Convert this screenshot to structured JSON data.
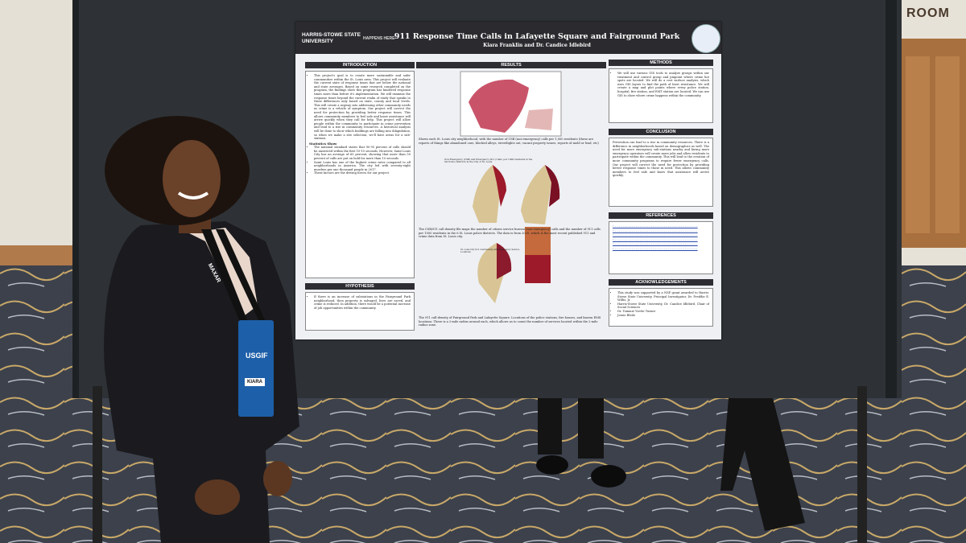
{
  "sign": "ROOM",
  "poster": {
    "logo": "HARRIS-STOWE STATE UNIVERSITY",
    "tagline": "HAPPENS HERE",
    "title": "911 Response Time Calls in Lafayette Square and Fairground Park",
    "authors": "Kiara Franklin and Dr. Candice Idlebird",
    "introduction": {
      "heading": "INTRODUCTION",
      "body": "This project's goal is to create more sustainable and safer communities within the St. Louis area. This project will evaluate the current state of response times that are below the national and state averages. Based on some research completed on the program, the findings show this program has hindered response times more than before it's implementation. We will examine the response times beyond the current realm of study that speaks to these differences only based on state, county and local levels. This will create a segway into addressing other community needs as crime is a vehicle of symptom. Our project will correct the need for protection by providing better response times. This allows community members to feel safe and know assistance will arrive quickly when they call for help. This project will allow people within the community to participate in crime prevention and lead to a rise in community resources. A historical analysis will be done to show which buildings are falling into dilapidation, so when we make a site selection, we'll have areas for a sub-stations.",
      "statistics_heading": "Statistics Show",
      "statistics": [
        "The national standard states that 90-95 percent of calls should be answered within the first 10-15 seconds. However, Saint Louis City has an average of 65 percent, showing that more than 50 percent of calls are put on hold for more than 10 seconds.",
        "Saint Louis has one of the highest crime rates compared to all neighborhoods in America. The city led with seventy-eight murders per one thousand people in 2017.",
        "These factors are the driving forces for our project."
      ]
    },
    "hypothesis": {
      "heading": "HYPOTHESIS",
      "body": "If there is an increase of substations in the Fairground Park neighborhood, then property is salvaged, lives are saved, and crime is reduced. In addition, there would be a potential increase of job opportunities within the community."
    },
    "results": {
      "heading": "RESULTS",
      "caption1": "Shows each St. Louis city neighborhood, with the number of CSB (non-emergency) calls per 1,000 residents (these are reports of things like abandoned cars, blocked alleys, streetlights out, vacant property issues, reports of mold or lead, etc)",
      "map2_title": "Non-Emergency (CSB) and Emergency (911) Calls, per 1000 residents in the Six Police Districts in the City of St. Louis",
      "caption2": "The CSB/911 call density file maps the number of citizen service bureau (non-emergency) calls and the number of 911 calls per 1000 residents in the 6 St. Louis police districts. The data is from 2020, which is the most recent published 911 and crime data from St. Louis city.",
      "map3_title": "St. Louis City 911 Call Density with Emergency Service Locations",
      "caption3": "The 911 call-density of Fairground Park and Lafayette Square. Locations of the police stations, fire houses, and known EMS locations. There is a 2-mile radius around each, which allows us to count the number of services located within the 2-mile radius zone."
    },
    "methods": {
      "heading": "METHODS",
      "body": "We will use various GIS tools to analyze groups within our treatment and control group and pinpoint where crime hot spots are located. We will do a cost surface analysis, which uses GIS layers to find the path of least resistance. We will create a map and plot points where every police station, hospital, fire station, and EMT station are located. We can use GIS to show where crime happens within the community."
    },
    "conclusion": {
      "heading": "CONCLUSION",
      "body": "Prevention can lead to a rise in community resources. There is a difference in neighborhoods based on demographics as well. The need for more emergency sub-stations nearby and hiring more emergency operators will create more jobs and allow residents to participate within the community. This will lead to the creation of more community programs to require fewer emergency calls. Our project will correct the need for protection by providing better response times to those in need. This allows community members to feel safe and know that assistance will arrive quickly."
    },
    "references": {
      "heading": "REFERENCES"
    },
    "acknowledgements": {
      "heading": "ACKNOWLEDGEMENTS",
      "items": [
        "This study was supported by a NSF grant awarded to Harris-Stowe State University. Principal Investigator, Dr. Freddie E. Willis, Jr.",
        "Harris-Stowe State University, Dr. Candice Idlebird, Chair of Social Sciences",
        "Dr. Tommie Yvette Turner",
        "Jessie Bledo"
      ]
    }
  },
  "badge": {
    "org": "USGIF",
    "name": "KIARA"
  },
  "lanyard": "MAXAR"
}
